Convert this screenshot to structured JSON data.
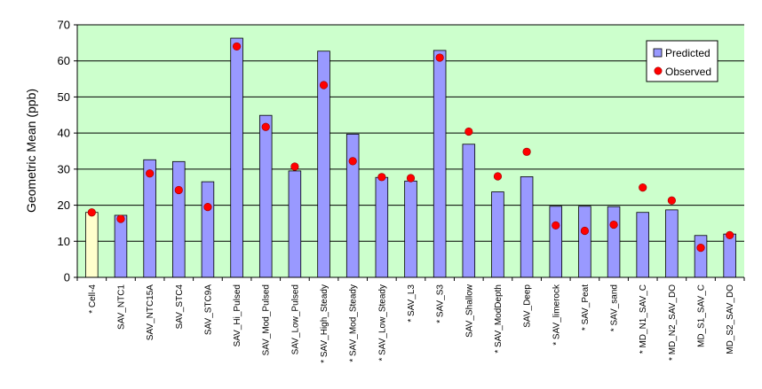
{
  "chart_data": {
    "type": "bar",
    "title": "",
    "xlabel": "",
    "ylabel": "Geometric Mean (ppb)",
    "ylim": [
      0,
      70
    ],
    "yticks": [
      0,
      10,
      20,
      30,
      40,
      50,
      60,
      70
    ],
    "grid": true,
    "legend_position": "top-right",
    "categories": [
      "* Cell-4",
      "SAV_NTC1",
      "SAV_NTC15A",
      "SAV_STC4",
      "SAV_STC9A",
      "SAV_Hi_Pulsed",
      "SAV_Mod_Pulsed",
      "SAV_Low_Pulsed",
      "* SAV_High_Steady",
      "* SAV_Mod_Steady",
      "* SAV_Low_Steady",
      "* SAV_L3",
      "* SAV_S3",
      "SAV_Shallow",
      "* SAV_ModDepth",
      "SAV_Deep",
      "* SAV_limerock",
      "* SAV_Peat",
      "* SAV_sand",
      "* MD_N1_SAV_C",
      "* MD_N2_SAV_DO",
      "MD_S1_SAV_C",
      "MD_S2_SAV_DO"
    ],
    "series": [
      {
        "name": "Predicted",
        "type": "bar",
        "values": [
          18,
          17.2,
          32.6,
          32.1,
          26.5,
          66.3,
          44.9,
          29.5,
          62.7,
          39.7,
          27.7,
          26.7,
          62.9,
          36.9,
          23.7,
          27.9,
          19.7,
          19.7,
          19.6,
          18.0,
          18.7,
          11.6,
          12.0
        ]
      },
      {
        "name": "Observed",
        "type": "scatter",
        "values": [
          18.0,
          16.2,
          28.8,
          24.2,
          19.5,
          64.0,
          41.7,
          30.7,
          53.3,
          32.2,
          27.8,
          27.5,
          60.9,
          40.4,
          28.0,
          34.8,
          14.4,
          12.9,
          14.6,
          24.9,
          21.3,
          8.2,
          11.7
        ]
      }
    ],
    "colors": {
      "plot_background": "#ccffcc",
      "bar_fill": "#9999ff",
      "bar_highlight_fill": "#ffffcc",
      "bar_stroke": "#000000",
      "marker_fill": "#ff0000",
      "marker_stroke": "#990000",
      "gridline": "#000000"
    },
    "highlight_index": 0
  }
}
